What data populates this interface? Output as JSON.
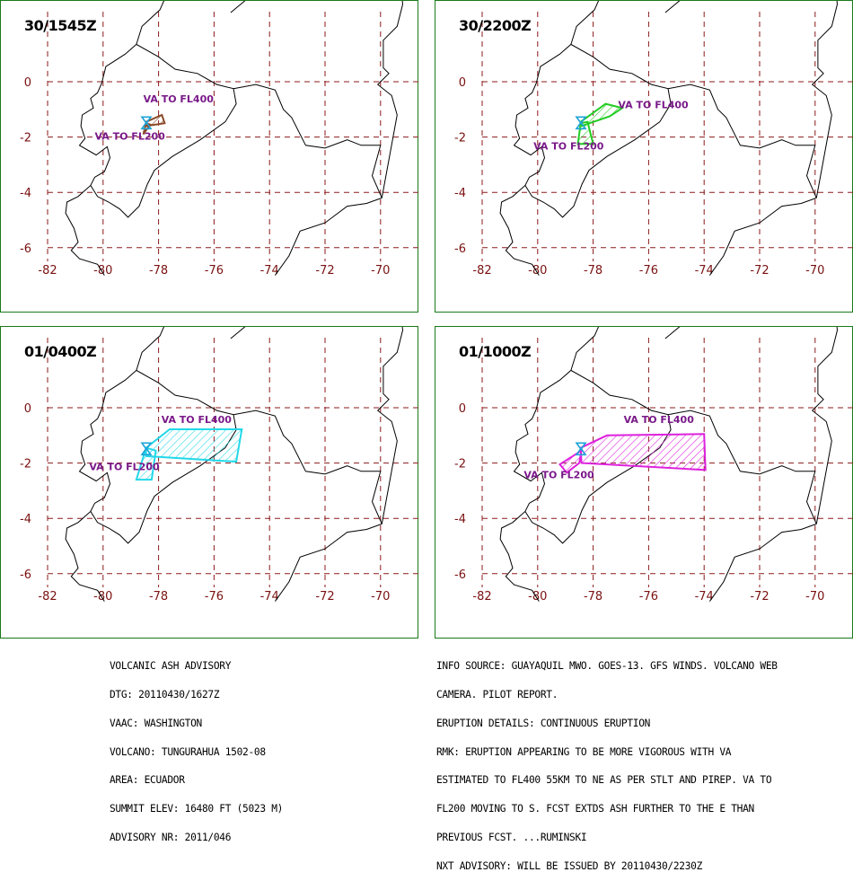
{
  "panels": [
    {
      "id": "p1",
      "time_label": "30/1545Z",
      "color": "#8a4b2a",
      "labels": [
        {
          "text": "VA TO FL400",
          "lon": -78.55,
          "lat": -0.75
        },
        {
          "text": "VA TO FL200",
          "lon": -80.3,
          "lat": -2.1
        }
      ],
      "polygons": [
        [
          [
            -78.45,
            -1.45
          ],
          [
            -77.88,
            -1.2
          ],
          [
            -77.78,
            -1.5
          ],
          [
            -78.45,
            -1.6
          ]
        ],
        [
          [
            -78.45,
            -1.5
          ],
          [
            -78.3,
            -1.55
          ],
          [
            -78.55,
            -1.9
          ]
        ]
      ]
    },
    {
      "id": "p2",
      "time_label": "30/2200Z",
      "color": "#22cc22",
      "labels": [
        {
          "text": "VA TO FL400",
          "lon": -77.1,
          "lat": -0.95
        },
        {
          "text": "VA TO FL200",
          "lon": -80.15,
          "lat": -2.45
        }
      ],
      "polygons": [
        [
          [
            -78.45,
            -1.45
          ],
          [
            -77.55,
            -0.8
          ],
          [
            -76.95,
            -0.95
          ],
          [
            -77.4,
            -1.25
          ],
          [
            -78.42,
            -1.6
          ]
        ],
        [
          [
            -78.45,
            -1.5
          ],
          [
            -78.2,
            -1.45
          ],
          [
            -78.0,
            -2.25
          ],
          [
            -78.55,
            -2.25
          ]
        ]
      ]
    },
    {
      "id": "p3",
      "time_label": "01/0400Z",
      "color": "#22d8e8",
      "labels": [
        {
          "text": "VA TO FL400",
          "lon": -77.9,
          "lat": -0.55
        },
        {
          "text": "VA TO FL200",
          "lon": -80.5,
          "lat": -2.25
        }
      ],
      "polygons": [
        [
          [
            -78.45,
            -1.45
          ],
          [
            -77.6,
            -0.78
          ],
          [
            -75.0,
            -0.78
          ],
          [
            -75.2,
            -1.95
          ],
          [
            -78.45,
            -1.75
          ]
        ],
        [
          [
            -78.45,
            -1.45
          ],
          [
            -78.1,
            -1.55
          ],
          [
            -78.25,
            -2.6
          ],
          [
            -78.8,
            -2.6
          ]
        ]
      ]
    },
    {
      "id": "p4",
      "time_label": "01/1000Z",
      "color": "#dd22dd",
      "labels": [
        {
          "text": "VA TO FL400",
          "lon": -76.9,
          "lat": -0.55
        },
        {
          "text": "VA TO FL200",
          "lon": -80.5,
          "lat": -2.55
        }
      ],
      "polygons": [
        [
          [
            -78.45,
            -1.45
          ],
          [
            -77.5,
            -1.0
          ],
          [
            -74.0,
            -0.95
          ],
          [
            -73.95,
            -2.25
          ],
          [
            -78.42,
            -2.0
          ]
        ],
        [
          [
            -78.42,
            -1.55
          ],
          [
            -78.5,
            -2.0
          ],
          [
            -78.95,
            -2.35
          ],
          [
            -79.2,
            -2.05
          ]
        ]
      ]
    }
  ],
  "map": {
    "x_ticks": [
      -82,
      -80,
      -78,
      -76,
      -74,
      -72,
      -70
    ],
    "y_ticks": [
      0,
      -2,
      -4,
      -6
    ],
    "volcano": {
      "lon": -78.44,
      "lat": -1.47
    }
  },
  "advisory": {
    "lines": [
      "VOLCANIC ASH ADVISORY",
      "DTG: 20110430/1627Z",
      "VAAC: WASHINGTON",
      "VOLCANO: TUNGURAHUA 1502-08",
      "AREA: ECUADOR",
      "SUMMIT ELEV: 16480 FT (5023 M)",
      "ADVISORY NR: 2011/046"
    ]
  },
  "info": {
    "lines": [
      "INFO SOURCE: GUAYAQUIL MWO. GOES-13. GFS WINDS. VOLCANO WEB",
      "CAMERA. PILOT REPORT.",
      "ERUPTION DETAILS: CONTINUOUS ERUPTION",
      "RMK: ERUPTION APPEARING TO BE MORE VIGOROUS WITH VA",
      "ESTIMATED TO FL400 55KM TO NE AS PER STLT AND PIREP. VA TO",
      "FL200 MOVING TO S. FCST EXTDS ASH FURTHER TO THE E THAN",
      "PREVIOUS FCST. ...RUMINSKI",
      "NXT ADVISORY: WILL BE ISSUED BY 20110430/2230Z"
    ]
  }
}
